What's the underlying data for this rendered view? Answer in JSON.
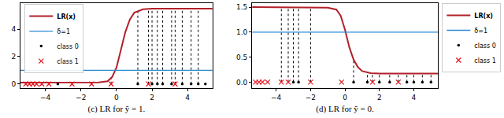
{
  "chart_data": [
    {
      "type": "line",
      "xlabel": "(c) LR for ỹ = 1.",
      "xlim": [
        -5.4,
        5.4
      ],
      "xticks": [
        {
          "value": -4,
          "label": "−4"
        },
        {
          "value": -2,
          "label": "−2"
        },
        0,
        2,
        4
      ],
      "ylim": [
        -0.3,
        5.9
      ],
      "yticks": [
        0,
        2,
        4
      ],
      "grid": false,
      "legend": "upper left",
      "series": [
        {
          "name": "LR(x)",
          "type": "line",
          "color": "#b2202a",
          "line_style": "solid",
          "x": [
            -5.4,
            -2,
            -1,
            -0.5,
            -0.25,
            0,
            0.25,
            0.5,
            0.75,
            1,
            1.5,
            2,
            5.4
          ],
          "values": [
            0.1,
            0.1,
            0.12,
            0.2,
            0.5,
            1.2,
            2.5,
            3.8,
            4.7,
            5.2,
            5.45,
            5.5,
            5.5
          ]
        },
        {
          "name": "δ=1",
          "type": "line",
          "color": "#2a8ad4",
          "line_style": "solid",
          "x": [
            -5.4,
            5.4
          ],
          "values": [
            1,
            1
          ]
        },
        {
          "name": "class 0",
          "type": "scatter",
          "marker": "dot",
          "color": "#000000",
          "x": [
            -3.3,
            1.2,
            2.0,
            2.3,
            2.6,
            3.1,
            3.7,
            4.2,
            4.6,
            5.0
          ],
          "values": [
            0,
            0,
            0,
            0,
            0,
            0,
            0,
            0,
            0,
            0
          ]
        },
        {
          "name": "class 1",
          "type": "scatter",
          "marker": "x",
          "color": "#e3141c",
          "x": [
            -5.1,
            -4.9,
            -4.7,
            -4.5,
            -4.2,
            -3.8,
            -2.5,
            -1.4,
            -0.3,
            1.8,
            3.3
          ],
          "values": [
            0,
            0,
            0,
            0,
            0,
            0,
            0,
            0,
            0,
            0,
            0
          ]
        }
      ],
      "stems": {
        "color": "#000000",
        "line_style": "dotted",
        "base": 0,
        "x": [
          -3.3,
          -2.5,
          -1.4,
          -0.3,
          1.2,
          1.8,
          2.0,
          2.3,
          2.6,
          3.1,
          3.3,
          3.7,
          4.2,
          4.6
        ],
        "values": [
          0.1,
          0.1,
          0.1,
          0.4,
          5.35,
          5.5,
          5.5,
          5.5,
          5.5,
          5.5,
          5.5,
          5.5,
          5.5,
          5.5
        ]
      }
    },
    {
      "type": "line",
      "xlabel": "(d) LR for ỹ = 0.",
      "xlim": [
        -5.4,
        5.4
      ],
      "xticks": [
        {
          "value": -4,
          "label": "−4"
        },
        {
          "value": -2,
          "label": "−2"
        },
        0,
        2,
        4
      ],
      "ylim": [
        -0.12,
        1.58
      ],
      "yticks": [
        {
          "value": 0,
          "label": "0.0"
        },
        0.5,
        {
          "value": 1,
          "label": "1.0"
        },
        1.5
      ],
      "grid": false,
      "legend": "upper right",
      "series": [
        {
          "name": "LR(x)",
          "type": "line",
          "color": "#b2202a",
          "line_style": "solid",
          "x": [
            -5.4,
            -2,
            -1,
            -0.5,
            -0.25,
            0,
            0.25,
            0.5,
            0.75,
            1,
            1.5,
            2,
            5.4
          ],
          "values": [
            1.5,
            1.5,
            1.49,
            1.45,
            1.33,
            1.05,
            0.7,
            0.45,
            0.3,
            0.22,
            0.18,
            0.17,
            0.17
          ]
        },
        {
          "name": "δ=1",
          "type": "line",
          "color": "#2a8ad4",
          "line_style": "solid",
          "x": [
            -5.4,
            5.4
          ],
          "values": [
            1,
            1
          ]
        },
        {
          "name": "class 0",
          "type": "scatter",
          "marker": "dot",
          "color": "#000000",
          "x": [
            -3.0,
            -2.7,
            0.5,
            1.3,
            2.0,
            2.6,
            3.6,
            4.0,
            4.5,
            5.0
          ],
          "values": [
            0,
            0,
            0,
            0,
            0,
            0,
            0,
            0,
            0,
            0
          ]
        },
        {
          "name": "class 1",
          "type": "scatter",
          "marker": "x",
          "color": "#e3141c",
          "x": [
            -5.2,
            -5.0,
            -4.8,
            -4.5,
            -3.7,
            -3.3,
            -2.0,
            -0.2,
            1.6,
            3.1
          ],
          "values": [
            0,
            0,
            0,
            0,
            0,
            0,
            0,
            0,
            0,
            0
          ]
        }
      ],
      "stems": {
        "color": "#000000",
        "line_style": "dotted",
        "base": 0,
        "x": [
          -3.7,
          -3.3,
          -3.0,
          -2.7,
          -2.0,
          0.5,
          1.3,
          1.6,
          2.0,
          2.6,
          3.1,
          3.6,
          4.0,
          4.5,
          5.0
        ],
        "values": [
          1.5,
          1.5,
          1.5,
          1.5,
          1.5,
          0.45,
          0.19,
          0.18,
          0.17,
          0.17,
          0.17,
          0.17,
          0.17,
          0.17,
          0.17
        ]
      }
    }
  ]
}
